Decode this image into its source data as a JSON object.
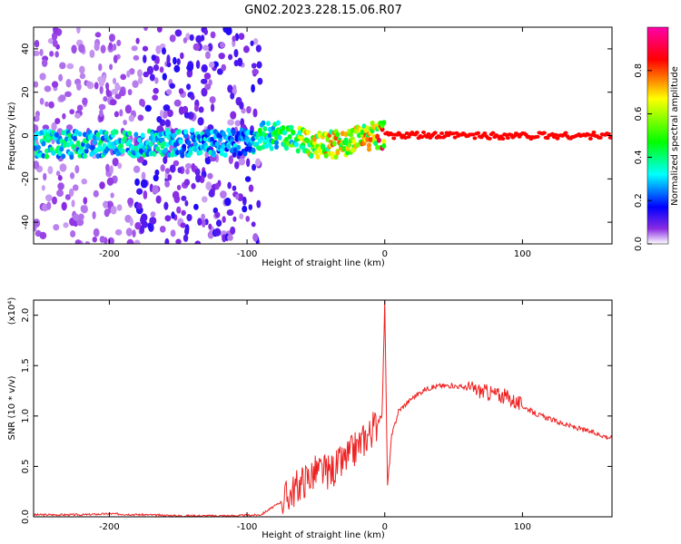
{
  "title": "GN02.2023.228.15.06.R07",
  "chart_data": [
    {
      "type": "heatmap",
      "xlabel": "Height of straight line (km)",
      "ylabel": "Frequency (Hz)",
      "xlim": [
        -255,
        165
      ],
      "ylim": [
        -50,
        50
      ],
      "xticks": [
        -200,
        -100,
        0,
        100
      ],
      "yticks": [
        -40,
        -20,
        0,
        20,
        40
      ],
      "colorbar": {
        "label": "Normalized spectral amplitude",
        "range": [
          0,
          1
        ],
        "ticks": [
          "0.0",
          "0.2",
          "0.4",
          "0.6",
          "0.8"
        ],
        "colormap": [
          "#ffffff",
          "#8a2be2",
          "#0000ff",
          "#00ffff",
          "#00ff00",
          "#ffff00",
          "#ff0000",
          "#ff00ff"
        ]
      },
      "ridge": [
        {
          "x": -250,
          "y": -4,
          "amp": 0.4
        },
        {
          "x": -180,
          "y": -4,
          "amp": 0.4
        },
        {
          "x": -100,
          "y": -3,
          "amp": 0.3
        },
        {
          "x": -90,
          "y": 0,
          "amp": 0.45
        },
        {
          "x": -70,
          "y": 0,
          "amp": 0.5
        },
        {
          "x": -55,
          "y": -4,
          "amp": 0.7
        },
        {
          "x": -35,
          "y": -4,
          "amp": 0.75
        },
        {
          "x": -20,
          "y": -2,
          "amp": 0.7
        },
        {
          "x": -10,
          "y": 0,
          "amp": 0.8
        },
        {
          "x": 0,
          "y": 0,
          "amp": 0.85
        },
        {
          "x": 165,
          "y": 0,
          "amp": 0.85
        }
      ]
    },
    {
      "type": "line",
      "xlabel": "Height of straight line (km)",
      "ylabel": "SNR (10 * v/v)",
      "scale_label": "(x10⁴)",
      "xlim": [
        -255,
        165
      ],
      "ylim": [
        0,
        2.15
      ],
      "xticks": [
        -200,
        -100,
        0,
        100
      ],
      "yticks": [
        "0.0",
        "0.5",
        "1.0",
        "1.5",
        "2.0"
      ],
      "series": [
        {
          "color": "#ee2222",
          "x": [
            -255,
            -220,
            -200,
            -150,
            -110,
            -90,
            -75,
            -60,
            -50,
            -40,
            -30,
            -20,
            -10,
            -5,
            -2,
            0,
            2,
            5,
            10,
            20,
            30,
            40,
            50,
            60,
            70,
            80,
            90,
            100,
            110,
            120,
            130,
            140,
            150,
            165
          ],
          "y": [
            0.02,
            0.02,
            0.03,
            0.01,
            0.01,
            0.02,
            0.15,
            0.35,
            0.45,
            0.45,
            0.55,
            0.7,
            0.85,
            0.95,
            1.0,
            2.12,
            0.3,
            0.8,
            1.05,
            1.18,
            1.27,
            1.3,
            1.3,
            1.28,
            1.25,
            1.22,
            1.18,
            1.1,
            1.02,
            0.97,
            0.92,
            0.88,
            0.84,
            0.78
          ]
        }
      ]
    }
  ]
}
